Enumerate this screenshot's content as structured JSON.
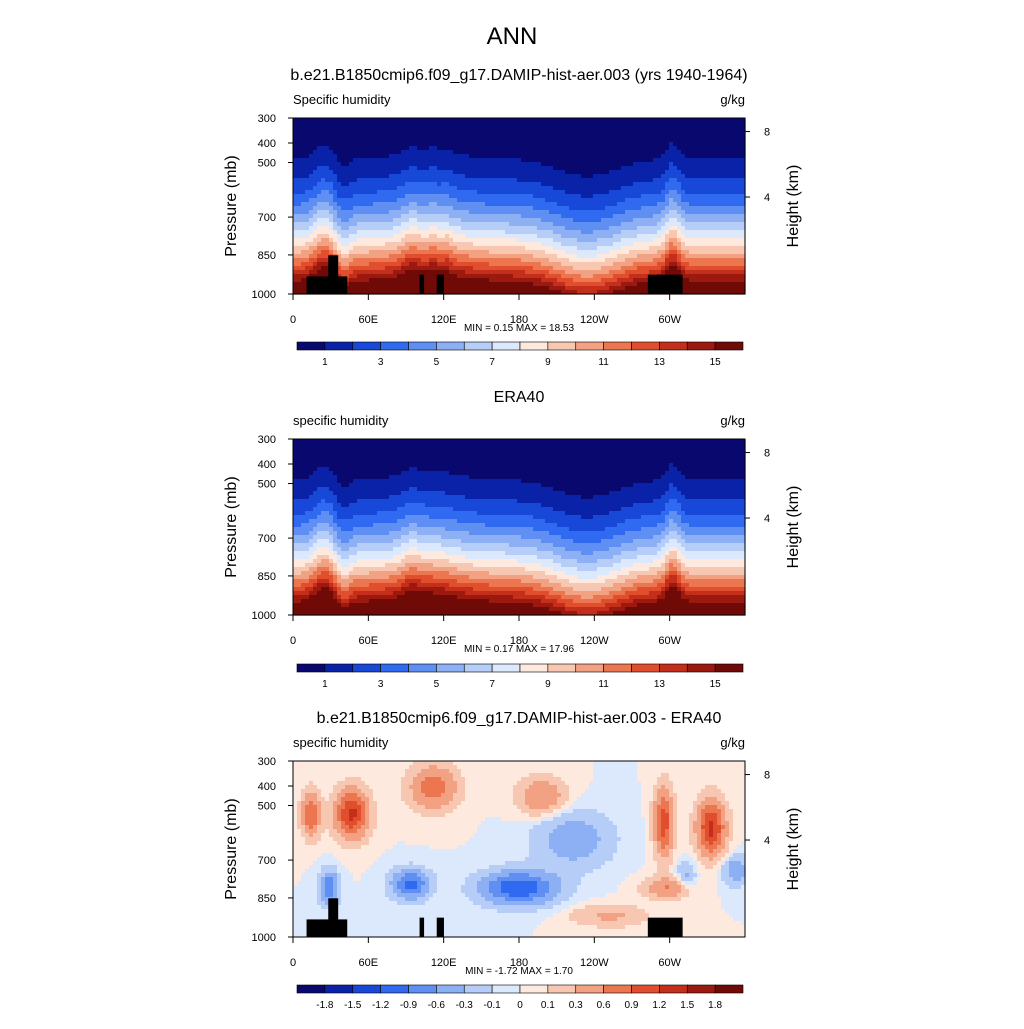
{
  "page": {
    "title": "ANN"
  },
  "chart_data": [
    {
      "type": "heatmap",
      "title": "b.e21.B1850cmip6.f09_g17.DAMIP-hist-aer.003 (yrs 1940-1964)",
      "left_label": "Specific humidity",
      "right_label": "g/kg",
      "ylabel": "Pressure (mb)",
      "y2label": "Height (km)",
      "x_ticks": [
        "0",
        "60E",
        "120E",
        "180",
        "120W",
        "60W"
      ],
      "y_ticks": [
        "300",
        "400",
        "500",
        "700",
        "850",
        "1000"
      ],
      "y2_ticks": [
        "8",
        "4"
      ],
      "stats": "MIN =   0.15  MAX =  18.53",
      "colorbar_labels": [
        "1",
        "3",
        "5",
        "7",
        "9",
        "11",
        "13",
        "15"
      ],
      "ylim": [
        1000,
        300
      ],
      "field": "model_q",
      "has_topography": true
    },
    {
      "type": "heatmap",
      "title": "ERA40",
      "left_label": "specific humidity",
      "right_label": "g/kg",
      "ylabel": "Pressure (mb)",
      "y2label": "Height (km)",
      "x_ticks": [
        "0",
        "60E",
        "120E",
        "180",
        "120W",
        "60W"
      ],
      "y_ticks": [
        "300",
        "400",
        "500",
        "700",
        "850",
        "1000"
      ],
      "y2_ticks": [
        "8",
        "4"
      ],
      "stats": "MIN =   0.17  MAX =  17.96",
      "colorbar_labels": [
        "1",
        "3",
        "5",
        "7",
        "9",
        "11",
        "13",
        "15"
      ],
      "ylim": [
        1000,
        300
      ],
      "field": "obs_q",
      "has_topography": false
    },
    {
      "type": "heatmap",
      "title": "b.e21.B1850cmip6.f09_g17.DAMIP-hist-aer.003 - ERA40",
      "left_label": "specific humidity",
      "right_label": "g/kg",
      "ylabel": "Pressure (mb)",
      "y2label": "Height (km)",
      "x_ticks": [
        "0",
        "60E",
        "120E",
        "180",
        "120W",
        "60W"
      ],
      "y_ticks": [
        "300",
        "400",
        "500",
        "700",
        "850",
        "1000"
      ],
      "y2_ticks": [
        "8",
        "4"
      ],
      "stats": "MIN =  -1.72  MAX =   1.70",
      "colorbar_labels": [
        "-1.8",
        "-1.5",
        "-1.2",
        "-0.9",
        "-0.6",
        "-0.3",
        "-0.1",
        "0",
        "0.1",
        "0.3",
        "0.6",
        "0.9",
        "1.2",
        "1.5",
        "1.8"
      ],
      "ylim": [
        1000,
        300
      ],
      "field": "diff_q",
      "has_topography": true
    }
  ],
  "colors": {
    "abs_palette": [
      "#08086e",
      "#0a22a8",
      "#1848d8",
      "#2f6af0",
      "#5f8ff2",
      "#8daff4",
      "#b5cdf7",
      "#dce8fb",
      "#fde9de",
      "#f8c7b1",
      "#f2a183",
      "#ec7650",
      "#e14e2d",
      "#c42f1c",
      "#9c1910",
      "#700a06"
    ],
    "diff_palette": [
      "#08086e",
      "#0a22a8",
      "#1848d8",
      "#2f6af0",
      "#5f8ff2",
      "#8daff4",
      "#b5cdf7",
      "#dce8fb",
      "#fde9de",
      "#f8c7b1",
      "#f2a183",
      "#ec7650",
      "#e14e2d",
      "#c42f1c",
      "#9c1910",
      "#700a06"
    ],
    "topography": "#000000"
  }
}
